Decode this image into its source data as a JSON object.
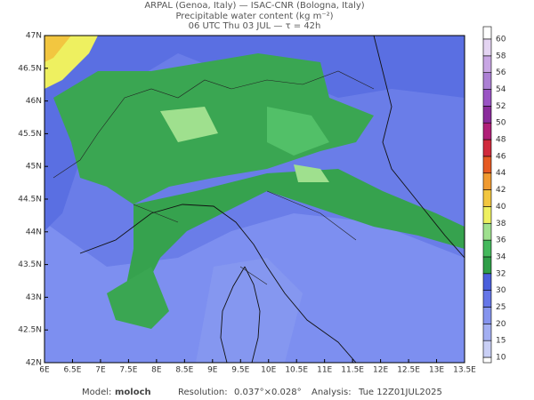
{
  "header": {
    "line1": "ARPAL (Genoa, Italy)  —  ISAC-CNR (Bologna, Italy)",
    "line2": "Precipitable water content (kg m⁻²)",
    "line3": "06 UTC Thu 03 JUL  —  τ = 42h"
  },
  "map": {
    "lat_labels": [
      "47N",
      "46.5N",
      "46N",
      "45.5N",
      "45N",
      "44.5N",
      "44N",
      "43.5N",
      "43N",
      "42.5N",
      "42N"
    ],
    "lon_labels": [
      "6E",
      "6.5E",
      "7E",
      "7.5E",
      "8E",
      "8.5E",
      "9E",
      "9.5E",
      "10E",
      "10.5E",
      "11E",
      "11.5E",
      "12E",
      "12.5E",
      "13E",
      "13.5E"
    ]
  },
  "colorbar": {
    "levels": [
      10,
      15,
      20,
      25,
      30,
      32,
      34,
      36,
      38,
      40,
      42,
      44,
      46,
      48,
      50,
      52,
      54,
      56,
      58,
      60
    ],
    "colors": [
      "#c9cff5",
      "#a3aff2",
      "#8594ee",
      "#6576e8",
      "#4a5fdc",
      "#2f9e48",
      "#44b85c",
      "#9fe08e",
      "#eef060",
      "#f2c640",
      "#f09a30",
      "#e65a22",
      "#d02a3c",
      "#b02078",
      "#8a2c9c",
      "#9a54c4",
      "#ac80d4",
      "#c8a6e4",
      "#e4d4f2"
    ]
  },
  "footer": {
    "model_label": "Model:",
    "model": "moloch",
    "resolution_label": "Resolution:",
    "resolution": "0.037°×0.028°",
    "analysis_label": "Analysis:",
    "analysis": "Tue 12Z01JUL2025"
  }
}
